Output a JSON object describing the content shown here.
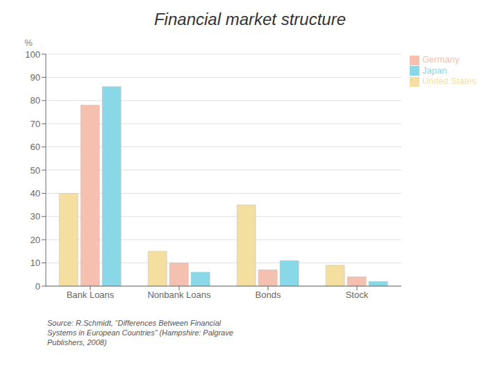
{
  "chart_data": {
    "type": "bar",
    "title": "Financial market structure",
    "ylabel": "%",
    "categories": [
      "Bank Loans",
      "Nonbank Loans",
      "Bonds",
      "Stock"
    ],
    "series": [
      {
        "name": "United States",
        "color": "#f5dfa0",
        "values": [
          40,
          15,
          35,
          9
        ]
      },
      {
        "name": "Germany",
        "color": "#f5c0b0",
        "values": [
          78,
          10,
          7,
          4
        ]
      },
      {
        "name": "Japan",
        "color": "#88d8e8",
        "values": [
          86,
          6,
          11,
          2
        ]
      }
    ],
    "ylim": [
      0,
      100
    ],
    "yticks": [
      0,
      10,
      20,
      30,
      40,
      50,
      60,
      70,
      80,
      90,
      100
    ],
    "grid": true,
    "legend": "upper right",
    "annotations": [
      "Source: R.Schmidt, “Differences Between Financial\nSystems in European Countries” (Hampshire: Palgrave\nPublishers, 2008)"
    ]
  }
}
